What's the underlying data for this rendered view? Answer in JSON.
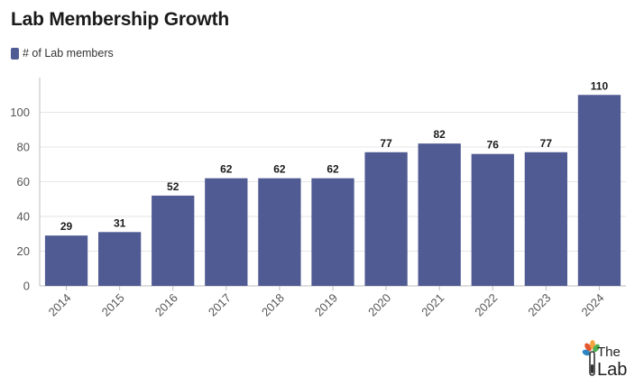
{
  "title": "Lab Membership Growth",
  "legend_label": "# of Lab members",
  "bar_color": "#505b93",
  "logo": {
    "text_top": "The",
    "text_bottom": "Lab"
  },
  "chart_data": {
    "type": "bar",
    "title": "Lab Membership Growth",
    "categories": [
      "2014",
      "2015",
      "2016",
      "2017",
      "2018",
      "2019",
      "2020",
      "2021",
      "2022",
      "2023",
      "2024"
    ],
    "series": [
      {
        "name": "# of Lab members",
        "values": [
          29,
          31,
          52,
          62,
          62,
          62,
          77,
          82,
          76,
          77,
          110
        ]
      }
    ],
    "yticks": [
      0,
      20,
      40,
      60,
      80,
      100
    ],
    "ylim": [
      0,
      120
    ],
    "grid": true,
    "legend": "top-left",
    "data_labels": true
  }
}
